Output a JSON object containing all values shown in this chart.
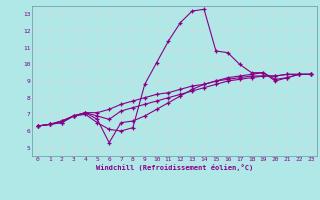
{
  "xlabel": "Windchill (Refroidissement éolien,°C)",
  "bg_color": "#b0e8e8",
  "line_color": "#880088",
  "grid_color": "#c8dede",
  "spine_color": "#7090a0",
  "xlim": [
    -0.5,
    23.5
  ],
  "ylim": [
    4.5,
    13.5
  ],
  "xticks": [
    0,
    1,
    2,
    3,
    4,
    5,
    6,
    7,
    8,
    9,
    10,
    11,
    12,
    13,
    14,
    15,
    16,
    17,
    18,
    19,
    20,
    21,
    22,
    23
  ],
  "yticks": [
    5,
    6,
    7,
    8,
    9,
    10,
    11,
    12,
    13
  ],
  "series": [
    [
      6.3,
      6.4,
      6.6,
      6.9,
      7.0,
      6.5,
      6.1,
      6.0,
      6.2,
      8.8,
      10.1,
      11.4,
      12.5,
      13.2,
      13.3,
      10.8,
      10.7,
      10.0,
      9.5,
      9.5,
      9.1,
      9.2,
      9.4,
      9.4
    ],
    [
      6.3,
      6.4,
      6.6,
      6.9,
      7.1,
      6.7,
      5.3,
      6.5,
      6.6,
      6.9,
      7.3,
      7.7,
      8.1,
      8.5,
      8.8,
      9.0,
      9.2,
      9.3,
      9.4,
      9.5,
      9.0,
      9.2,
      9.4,
      9.4
    ],
    [
      6.3,
      6.4,
      6.5,
      6.9,
      7.1,
      6.9,
      6.7,
      7.2,
      7.4,
      7.6,
      7.8,
      8.0,
      8.2,
      8.4,
      8.6,
      8.8,
      9.0,
      9.1,
      9.2,
      9.3,
      9.3,
      9.4,
      9.4,
      9.4
    ],
    [
      6.3,
      6.4,
      6.5,
      6.9,
      7.1,
      7.1,
      7.3,
      7.6,
      7.8,
      8.0,
      8.2,
      8.3,
      8.5,
      8.7,
      8.8,
      9.0,
      9.1,
      9.2,
      9.3,
      9.3,
      9.3,
      9.4,
      9.4,
      9.4
    ]
  ],
  "marker": "+",
  "markersize": 3,
  "linewidth": 0.8
}
